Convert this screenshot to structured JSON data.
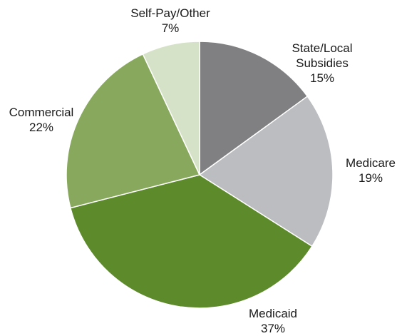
{
  "chart_data": {
    "type": "pie",
    "title": "",
    "legend": "none",
    "slices": [
      {
        "label_lines": [
          "State/Local",
          "Subsidies"
        ],
        "value": 15,
        "value_label": "15%",
        "color": "#808083"
      },
      {
        "label_lines": [
          "Medicare"
        ],
        "value": 19,
        "value_label": "19%",
        "color": "#bcbdc0"
      },
      {
        "label_lines": [
          "Medicaid"
        ],
        "value": 37,
        "value_label": "37%",
        "color": "#5d8a2a"
      },
      {
        "label_lines": [
          "Commercial"
        ],
        "value": 22,
        "value_label": "22%",
        "color": "#87a85d"
      },
      {
        "label_lines": [
          "Self-Pay/Other"
        ],
        "value": 7,
        "value_label": "7%",
        "color": "#d6e2c8"
      }
    ]
  }
}
